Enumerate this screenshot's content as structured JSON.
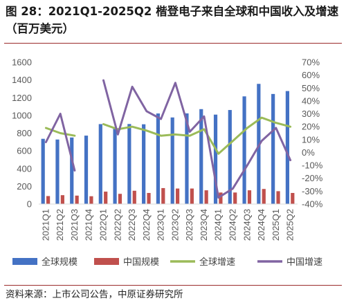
{
  "title": "图 28：2021Q1-2025Q2 楷登电子来自全球和中国收入及增速（百万美元）",
  "source": "资料来源：上市公司公告，中原证券研究所",
  "chart_data": {
    "type": "bar",
    "categories": [
      "2021Q1",
      "2021Q2",
      "2021Q3",
      "2021Q4",
      "2022Q1",
      "2022Q2",
      "2022Q3",
      "2022Q4",
      "2023Q1",
      "2023Q2",
      "2023Q3",
      "2023Q4",
      "2024Q1",
      "2024Q2",
      "2024Q3",
      "2024Q4",
      "2025Q1",
      "2025Q2"
    ],
    "series": [
      {
        "name": "全球规模",
        "type": "bar",
        "axis": "left",
        "color": "#4472C4",
        "values": [
          736,
          728,
          751,
          772,
          902,
          857,
          903,
          900,
          1022,
          977,
          1023,
          1071,
          1009,
          1061,
          1215,
          1356,
          1242,
          1275
        ]
      },
      {
        "name": "中国规模",
        "type": "bar",
        "axis": "left",
        "color": "#C0504D",
        "values": [
          90,
          100,
          95,
          88,
          140,
          115,
          150,
          125,
          180,
          175,
          175,
          155,
          130,
          130,
          155,
          170,
          145,
          125
        ]
      },
      {
        "name": "全球增速",
        "type": "line",
        "axis": "right",
        "color": "#9BBB59",
        "values": [
          0.19,
          0.15,
          0.13,
          null,
          0.22,
          0.18,
          0.2,
          0.17,
          0.13,
          0.14,
          0.13,
          0.18,
          -0.01,
          0.09,
          0.19,
          0.27,
          0.23,
          0.2
        ]
      },
      {
        "name": "中国增速",
        "type": "line",
        "axis": "right",
        "color": "#8064A2",
        "values": [
          0.08,
          0.3,
          -0.14,
          null,
          0.56,
          0.14,
          0.51,
          0.32,
          0.26,
          0.54,
          0.16,
          0.28,
          -0.35,
          -0.28,
          -0.1,
          0.09,
          0.19,
          -0.06
        ]
      }
    ],
    "ylim_left": [
      0,
      1600
    ],
    "yticks_left": [
      "0",
      "200",
      "400",
      "600",
      "800",
      "1000",
      "1200",
      "1400",
      "1600"
    ],
    "ylim_right": [
      -0.4,
      0.7
    ],
    "yticks_right": [
      "-40%",
      "-30%",
      "-20%",
      "-10%",
      "0%",
      "10%",
      "20%",
      "30%",
      "40%",
      "50%",
      "60%",
      "70%"
    ],
    "grid": false,
    "legend_position": "bottom"
  }
}
